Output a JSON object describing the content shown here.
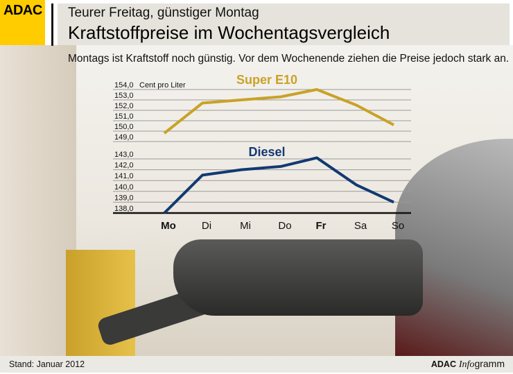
{
  "header": {
    "logo": "ADAC",
    "kicker": "Teurer Freitag, günstiger Montag",
    "title": "Kraftstoffpreise im Wochentagsvergleich",
    "lead": "Montags ist Kraftstoff noch günstig. Vor dem Wochenende ziehen die Preise jedoch stark an."
  },
  "footer": {
    "stand": "Stand: Januar 2012",
    "brand_bold": "ADAC",
    "brand_italic": "Info",
    "brand_rest": "gramm"
  },
  "chart_data": [
    {
      "type": "line",
      "title": "Super E10",
      "ylabel": "Cent pro Liter",
      "color": "#c9a227",
      "categories": [
        "Mo",
        "Di",
        "Mi",
        "Do",
        "Fr",
        "Sa",
        "So"
      ],
      "bold_categories": [
        "Mo",
        "Fr"
      ],
      "values": [
        149.8,
        152.7,
        153.0,
        153.3,
        154.0,
        152.5,
        150.6
      ],
      "ylim": [
        149,
        154
      ],
      "yticks": [
        "149,0",
        "150,0",
        "151,0",
        "152,0",
        "153,0",
        "154,0"
      ],
      "grid": true
    },
    {
      "type": "line",
      "title": "Diesel",
      "color": "#123a72",
      "categories": [
        "Mo",
        "Di",
        "Mi",
        "Do",
        "Fr",
        "Sa",
        "So"
      ],
      "values": [
        138.0,
        141.5,
        142.0,
        142.3,
        143.1,
        140.6,
        139.0
      ],
      "ylim": [
        138,
        143
      ],
      "yticks": [
        "138,0",
        "139,0",
        "140,0",
        "141,0",
        "142,0",
        "143,0"
      ],
      "grid": true
    }
  ]
}
